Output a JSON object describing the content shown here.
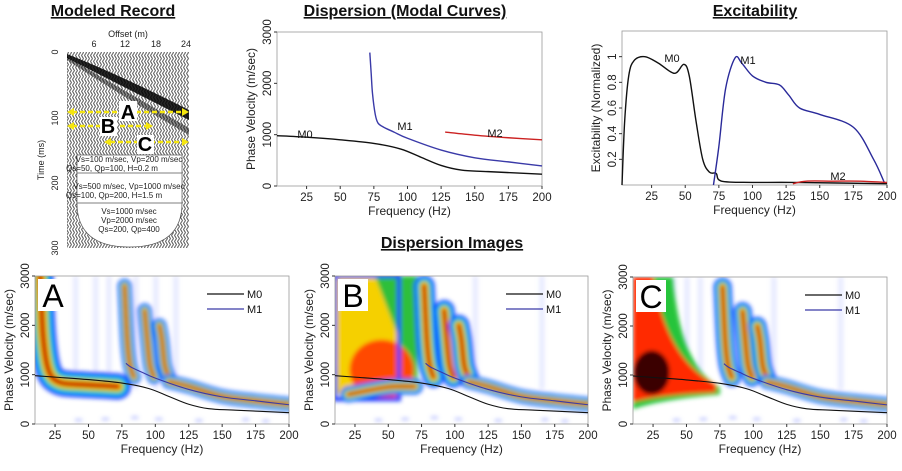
{
  "titles": {
    "record": "Modeled Record",
    "modal": "Dispersion (Modal Curves)",
    "excitability": "Excitability",
    "images": "Dispersion Images"
  },
  "record": {
    "xlabel": "Offset (m)",
    "ylabel": "Time (ms)",
    "xticks": [
      "6",
      "12",
      "18",
      "24"
    ],
    "yticks": [
      "0",
      "100",
      "200",
      "300"
    ],
    "windows": [
      "A",
      "B",
      "C"
    ],
    "layers": [
      {
        "line1": "Vs=100 m/sec, Vp=200 m/sec",
        "line2": "Qs=50, Qp=100, H=0.2 m"
      },
      {
        "line1": "Vs=500 m/sec, Vp=1000 m/sec",
        "line2": "Qs=100, Qp=200, H=1.5 m"
      }
    ],
    "halfspace": [
      "Vs=1000 m/sec",
      "Vp=2000 m/sec",
      "Qs=200, Qp=400"
    ],
    "colors": {
      "window_arrow": "#f5e60f"
    }
  },
  "chart_data": [
    {
      "id": "modal",
      "type": "line",
      "title": "Dispersion (Modal Curves)",
      "xlabel": "Frequency (Hz)",
      "ylabel": "Phase Velocity (m/sec)",
      "xlim": [
        3,
        200
      ],
      "ylim": [
        0,
        3000
      ],
      "xticks": [
        25,
        50,
        75,
        100,
        125,
        150,
        175,
        200
      ],
      "yticks": [
        0,
        1000,
        2000,
        3000
      ],
      "series": [
        {
          "name": "M0",
          "color": "#111111",
          "x": [
            3,
            25,
            50,
            75,
            95,
            110,
            125,
            140,
            160,
            200
          ],
          "y": [
            980,
            950,
            900,
            830,
            720,
            560,
            400,
            310,
            280,
            230
          ]
        },
        {
          "name": "M1",
          "color": "#3a3aa8",
          "x": [
            72,
            73,
            74,
            76,
            78,
            82,
            90,
            100,
            125,
            150,
            175,
            200
          ],
          "y": [
            2600,
            2200,
            1800,
            1400,
            1230,
            1150,
            1050,
            930,
            700,
            550,
            470,
            390
          ]
        },
        {
          "name": "M2",
          "color": "#cc2222",
          "x": [
            128,
            150,
            175,
            200
          ],
          "y": [
            1050,
            990,
            940,
            900
          ]
        }
      ]
    },
    {
      "id": "excitability",
      "type": "line",
      "title": "Excitability",
      "xlabel": "Frequency (Hz)",
      "ylabel": "Excitability (Normalized)",
      "xlim": [
        3,
        200
      ],
      "ylim": [
        0,
        1.2
      ],
      "xticks": [
        25,
        50,
        75,
        100,
        125,
        150,
        175,
        200
      ],
      "yticks": [
        0.2,
        0.4,
        0.6,
        0.8,
        1.0
      ],
      "series": [
        {
          "name": "M0",
          "color": "#111111",
          "x": [
            3,
            5,
            8,
            12,
            20,
            30,
            42,
            49,
            53,
            58,
            63,
            68,
            73,
            77,
            100,
            130,
            200
          ],
          "y": [
            0,
            0.5,
            0.85,
            0.97,
            1.0,
            0.95,
            0.87,
            0.94,
            0.85,
            0.5,
            0.2,
            0.1,
            0.09,
            0.03,
            0.02,
            0.02,
            0.01
          ]
        },
        {
          "name": "M1",
          "color": "#2a2a9a",
          "x": [
            71,
            75,
            80,
            87,
            92,
            100,
            110,
            120,
            127,
            135,
            150,
            175,
            190,
            198
          ],
          "y": [
            0,
            0.3,
            0.75,
            0.99,
            0.95,
            0.85,
            0.8,
            0.78,
            0.7,
            0.6,
            0.55,
            0.45,
            0.2,
            0.02
          ]
        },
        {
          "name": "M2",
          "color": "#cc2222",
          "x": [
            130,
            140,
            160,
            180,
            200
          ],
          "y": [
            0.01,
            0.03,
            0.03,
            0.03,
            0.02
          ]
        }
      ]
    },
    {
      "id": "A",
      "type": "heatmap",
      "panel_label": "A",
      "xlabel": "Frequency (Hz)",
      "ylabel": "Phase Velocity (m/sec)",
      "xlim": [
        10,
        200
      ],
      "ylim": [
        0,
        3000
      ],
      "xticks": [
        25,
        50,
        75,
        100,
        125,
        150,
        175,
        200
      ],
      "yticks": [
        0,
        1000,
        2000,
        3000
      ],
      "legend": [
        {
          "name": "M0",
          "color": "#111111"
        },
        {
          "name": "M1",
          "color": "#3a3aa8"
        }
      ],
      "legend_position": "top-right"
    },
    {
      "id": "B",
      "type": "heatmap",
      "panel_label": "B",
      "xlabel": "Frequency (Hz)",
      "ylabel": "Phase Velocity (m/sec)",
      "xlim": [
        10,
        200
      ],
      "ylim": [
        0,
        3000
      ],
      "xticks": [
        25,
        50,
        75,
        100,
        125,
        150,
        175,
        200
      ],
      "yticks": [
        0,
        1000,
        2000,
        3000
      ],
      "legend": [
        {
          "name": "M0",
          "color": "#111111"
        },
        {
          "name": "M1",
          "color": "#3a3aa8"
        }
      ],
      "legend_position": "top-right"
    },
    {
      "id": "C",
      "type": "heatmap",
      "panel_label": "C",
      "xlabel": "Frequency (Hz)",
      "ylabel": "Phase Velocity (m/sec)",
      "xlim": [
        10,
        200
      ],
      "ylim": [
        0,
        3000
      ],
      "xticks": [
        25,
        50,
        75,
        100,
        125,
        150,
        175,
        200
      ],
      "yticks": [
        0,
        1000,
        2000,
        3000
      ],
      "legend": [
        {
          "name": "M0",
          "color": "#111111"
        },
        {
          "name": "M1",
          "color": "#3a3aa8"
        }
      ],
      "legend_position": "top-right"
    }
  ]
}
